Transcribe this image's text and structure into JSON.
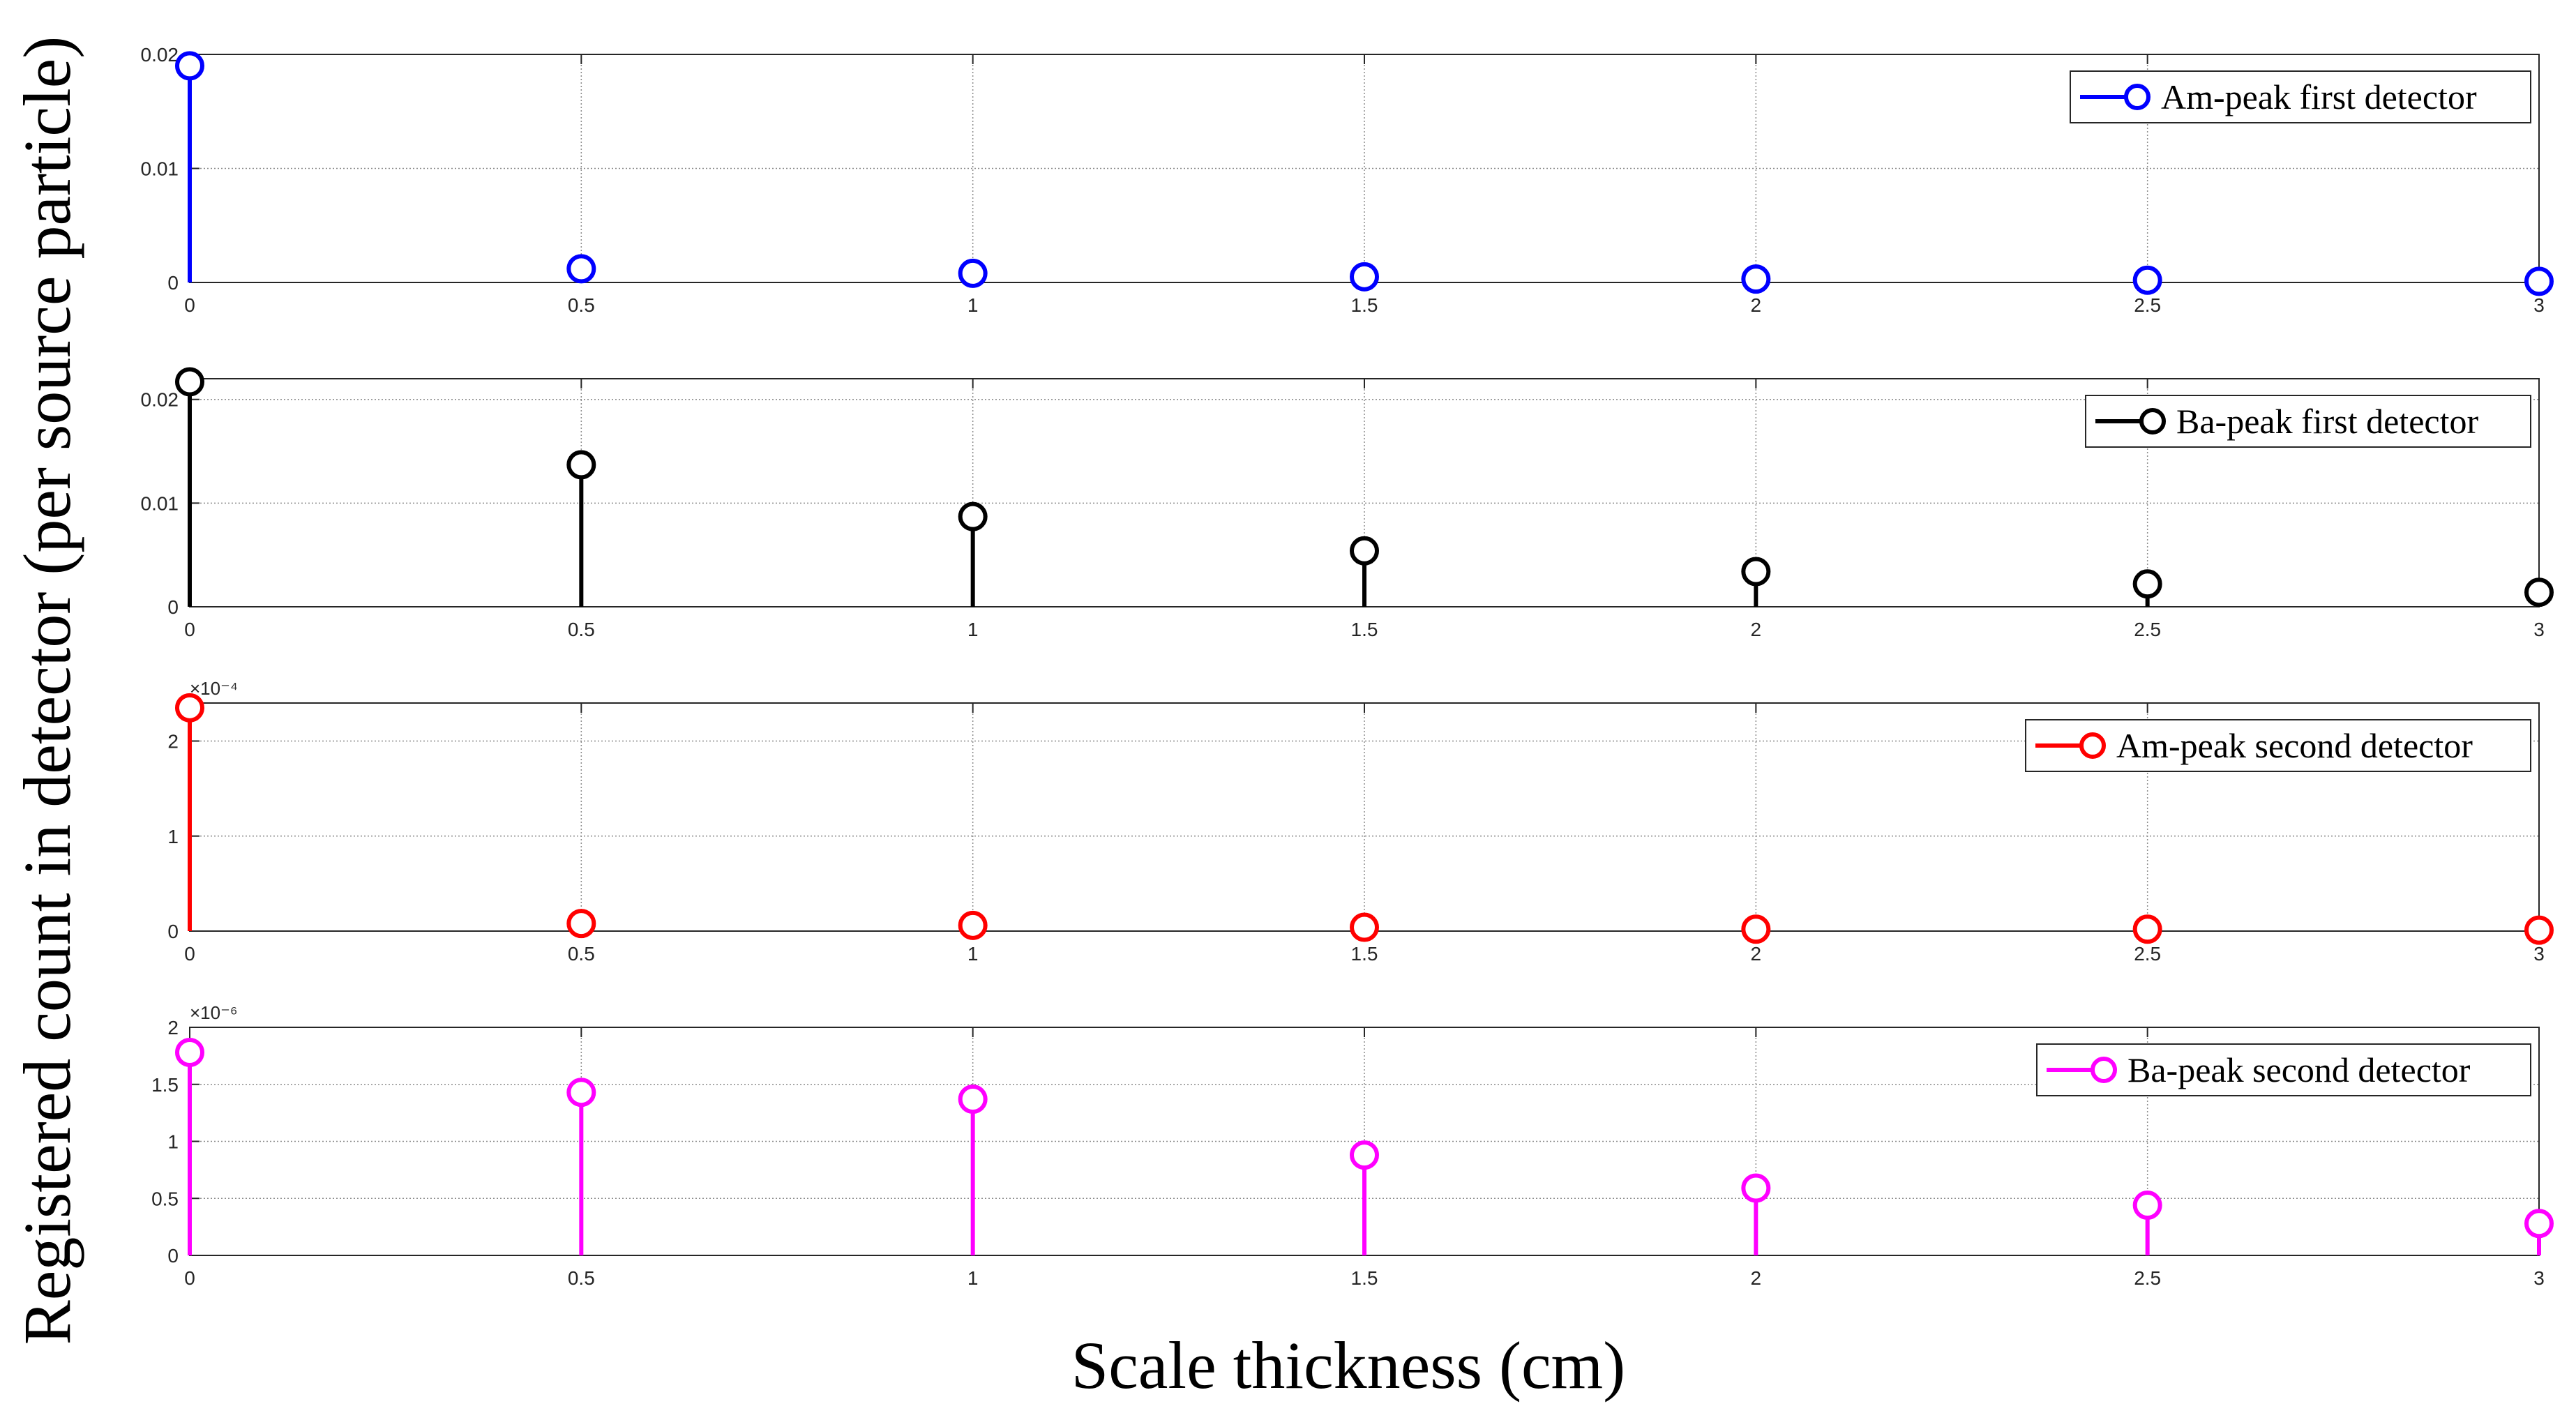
{
  "chart_data": {
    "type": "stem",
    "xlabel": "Scale thickness (cm)",
    "ylabel": "Registered count in detector (per source particle)",
    "x": [
      0,
      0.5,
      1,
      1.5,
      2,
      2.5,
      3
    ],
    "xlim": [
      0,
      3
    ],
    "xticks": [
      "0",
      "0.5",
      "1",
      "1.5",
      "2",
      "2.5",
      "3"
    ],
    "grid": true,
    "panels": [
      {
        "legend": "Am-peak first detector",
        "legend_position": "top-right",
        "color": "#0000ff",
        "ylim": [
          0,
          0.02
        ],
        "yticks": [
          "0",
          "0.01",
          "0.02"
        ],
        "exponent": "",
        "values": [
          0.019,
          0.0012,
          0.0008,
          0.0005,
          0.0003,
          0.0002,
          0.0001
        ]
      },
      {
        "legend": "Ba-peak first detector",
        "legend_position": "top-right",
        "color": "#000000",
        "ylim": [
          0,
          0.022
        ],
        "yticks": [
          "0",
          "0.01",
          "0.02"
        ],
        "exponent": "",
        "values": [
          0.0217,
          0.0137,
          0.0087,
          0.0054,
          0.0034,
          0.0022,
          0.0014
        ]
      },
      {
        "legend": "Am-peak second detector",
        "legend_position": "top-right",
        "color": "#ff0000",
        "ylim": [
          0,
          2.4
        ],
        "yticks": [
          "0",
          "1",
          "2"
        ],
        "exponent": "×10⁻⁴",
        "values": [
          2.35,
          0.08,
          0.06,
          0.04,
          0.02,
          0.02,
          0.01
        ]
      },
      {
        "legend": "Ba-peak second detector",
        "legend_position": "top-right",
        "color": "#ff00ff",
        "ylim": [
          0,
          2
        ],
        "yticks": [
          "0",
          "0.5",
          "1",
          "1.5",
          "2"
        ],
        "exponent": "×10⁻⁶",
        "values": [
          1.78,
          1.43,
          1.37,
          0.88,
          0.59,
          0.44,
          0.28
        ]
      }
    ]
  }
}
